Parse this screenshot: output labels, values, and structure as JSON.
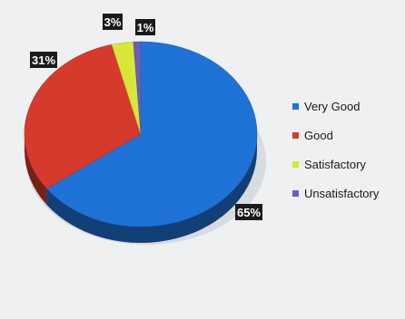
{
  "chart_data": {
    "type": "pie",
    "title": "",
    "categories": [
      "Very Good",
      "Good",
      "Satisfactory",
      "Unsatisfactory"
    ],
    "values": [
      65,
      31,
      3,
      1
    ],
    "data_labels": [
      "65%",
      "31%",
      "3%",
      "1%"
    ],
    "colors": [
      "#1f72d6",
      "#d63a2c",
      "#d8e63a",
      "#6b5fb8"
    ],
    "legend_position": "right",
    "style": "3d"
  }
}
